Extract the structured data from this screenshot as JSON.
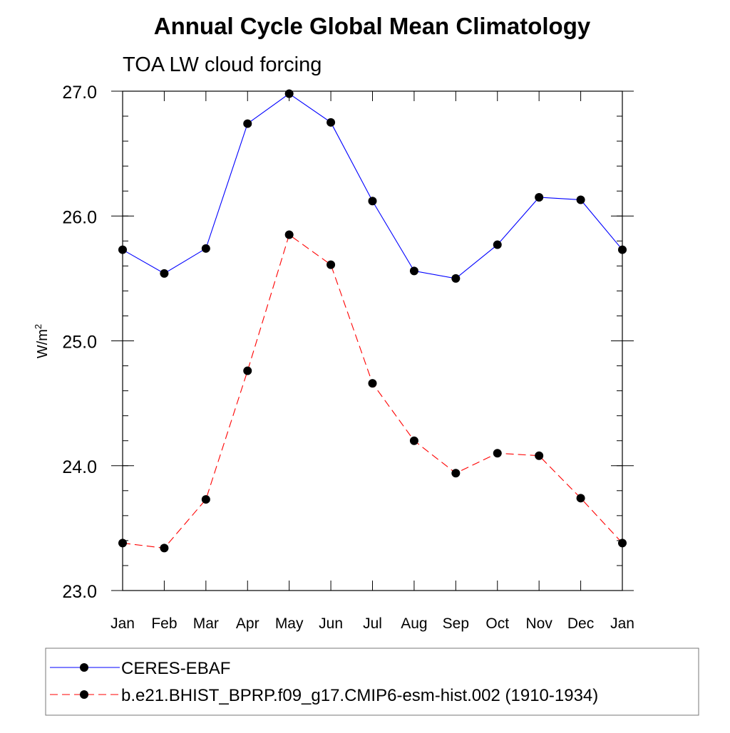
{
  "chart_data": {
    "type": "line",
    "title": "Annual Cycle Global Mean Climatology",
    "subtitle": "TOA LW cloud forcing",
    "ylabel_base": "W/m",
    "ylabel_sup": "2",
    "xlabel": "",
    "categories": [
      "Jan",
      "Feb",
      "Mar",
      "Apr",
      "May",
      "Jun",
      "Jul",
      "Aug",
      "Sep",
      "Oct",
      "Nov",
      "Dec",
      "Jan"
    ],
    "ylim": [
      23.0,
      27.0
    ],
    "yticks": [
      23.0,
      24.0,
      25.0,
      26.0,
      27.0
    ],
    "ytick_labels": [
      "23.0",
      "24.0",
      "25.0",
      "26.0",
      "27.0"
    ],
    "minor_ytick_step": 0.2,
    "grid": false,
    "legend_position": "bottom",
    "series": [
      {
        "name": "CERES-EBAF",
        "color": "#0000ff",
        "dash": "solid",
        "marker": "filled-circle",
        "values": [
          25.73,
          25.54,
          25.74,
          26.74,
          26.98,
          26.75,
          26.12,
          25.56,
          25.5,
          25.77,
          26.15,
          26.13,
          25.73
        ]
      },
      {
        "name": "b.e21.BHIST_BPRP.f09_g17.CMIP6-esm-hist.002 (1910-1934)",
        "color": "#ff0000",
        "dash": "dashed",
        "marker": "filled-circle",
        "values": [
          23.38,
          23.34,
          23.73,
          24.76,
          25.85,
          25.61,
          24.66,
          24.2,
          23.94,
          24.1,
          24.08,
          23.74,
          23.38
        ]
      }
    ]
  }
}
